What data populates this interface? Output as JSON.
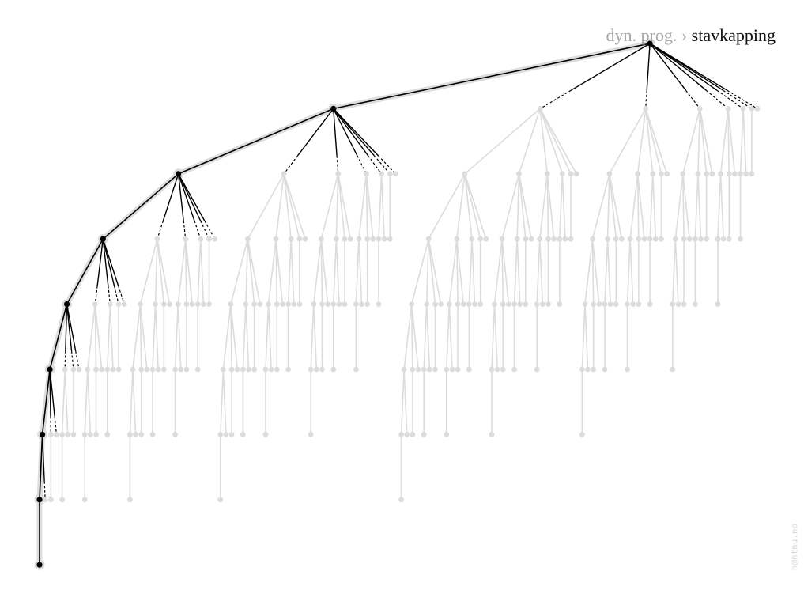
{
  "breadcrumb": {
    "parent": "dyn. prog.",
    "separator": "›",
    "current": "stavkapping"
  },
  "footer": {
    "email": "h@ntnu.no"
  }
}
